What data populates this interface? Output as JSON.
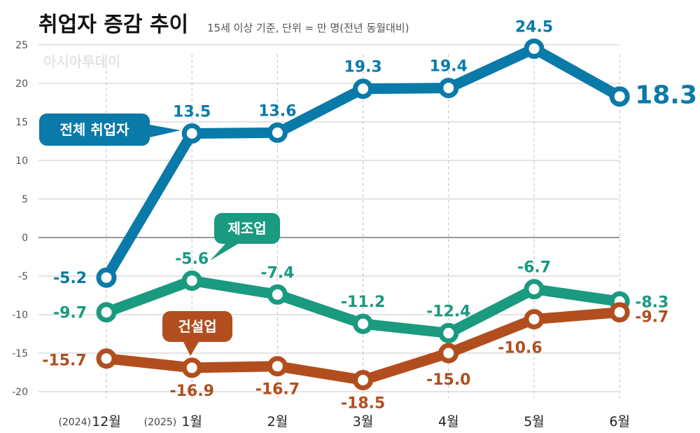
{
  "header": {
    "title": "취업자 증감 추이",
    "subtitle": "15세 이상 기준, 단위 = 만 명(전년 동월대비)"
  },
  "watermark": "아시아투데이",
  "colors": {
    "total": "#0a7aa8",
    "manufacturing": "#1a9a7f",
    "construction": "#b24e1e",
    "grid": "#c8c8c8",
    "zero_line": "#777777"
  },
  "chart_data": {
    "type": "line",
    "categories": [
      "12월",
      "1월",
      "2월",
      "3월",
      "4월",
      "5월",
      "6월"
    ],
    "category_prefixes": [
      "(2024)",
      "(2025)",
      "",
      "",
      "",
      "",
      ""
    ],
    "ylim": [
      -22,
      27
    ],
    "yticks": [
      25,
      20,
      15,
      10,
      5,
      0,
      -5,
      -10,
      -15,
      -20
    ],
    "grid": true,
    "series": [
      {
        "key": "total",
        "name": "전체 취업자",
        "values": [
          -5.2,
          13.5,
          13.6,
          19.3,
          19.4,
          24.5,
          18.3
        ],
        "labels": [
          "-5.2",
          "13.5",
          "13.6",
          "19.3",
          "19.4",
          "24.5",
          "18.3"
        ]
      },
      {
        "key": "manufacturing",
        "name": "제조업",
        "values": [
          -9.7,
          -5.6,
          -7.4,
          -11.2,
          -12.4,
          -6.7,
          -8.3
        ],
        "labels": [
          "-9.7",
          "-5.6",
          "-7.4",
          "-11.2",
          "-12.4",
          "-6.7",
          "-8.3"
        ]
      },
      {
        "key": "construction",
        "name": "건설업",
        "values": [
          -15.7,
          -16.9,
          -16.7,
          -18.5,
          -15.0,
          -10.6,
          -9.7
        ],
        "labels": [
          "-15.7",
          "-16.9",
          "-16.7",
          "-18.5",
          "-15.0",
          "-10.6",
          "-9.7"
        ]
      }
    ]
  }
}
